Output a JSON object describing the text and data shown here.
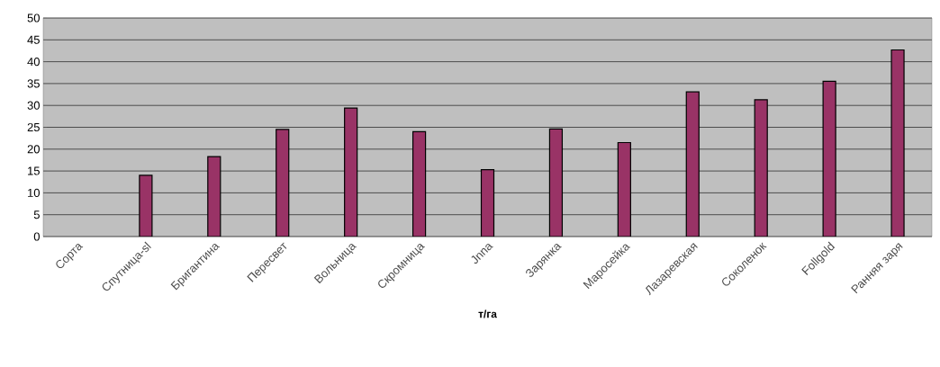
{
  "chart_data": {
    "type": "bar",
    "xlabel": "т/га",
    "categories": [
      "Сорта",
      "Спутница-sl",
      "Бригантина",
      "Пересвет",
      "Вольница",
      "Скромница",
      "Jnna",
      "Зарянка",
      "Маросейка",
      "Лазаревская",
      "Соколенок",
      "Follgold",
      "Ранняя заря"
    ],
    "values": [
      null,
      14,
      18.3,
      24.5,
      29.4,
      24,
      15.3,
      24.6,
      21.5,
      33.1,
      31.3,
      35.5,
      42.7
    ],
    "color": "#993366",
    "ylim": [
      0,
      50
    ],
    "yticks": [
      0,
      5,
      10,
      15,
      20,
      25,
      30,
      35,
      40,
      45,
      50
    ],
    "grid": "y"
  }
}
